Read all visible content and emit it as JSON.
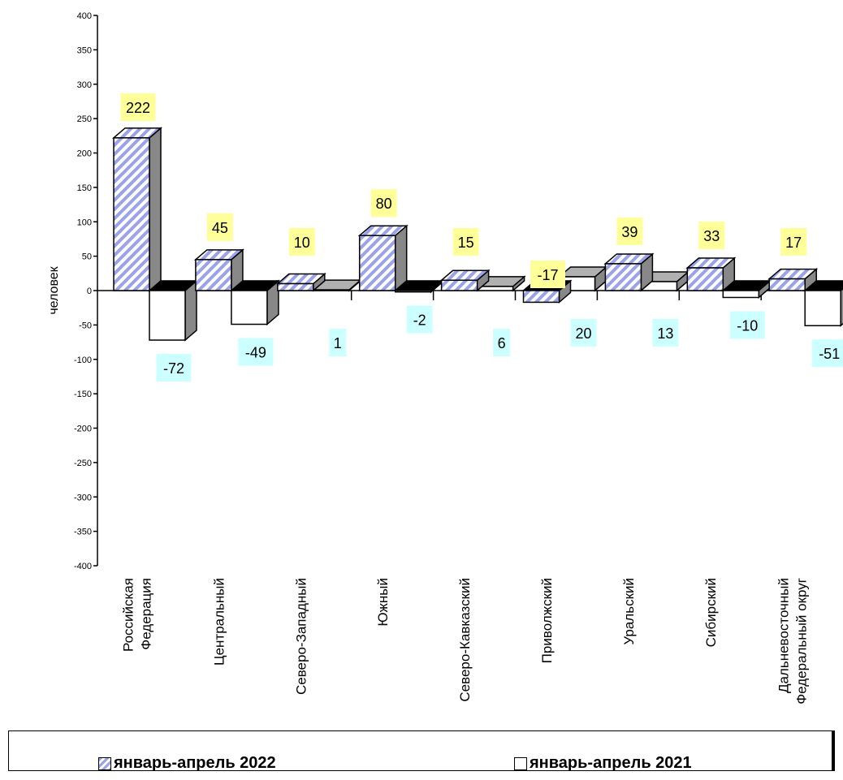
{
  "chart_data": {
    "type": "bar",
    "ylabel": "человек",
    "ylim": [
      -400,
      400
    ],
    "ytick_step": 50,
    "categories": [
      "Российская Федерация",
      "Центральный",
      "Северо-Западный",
      "Южный",
      "Северо-Кавказский",
      "Приволжский",
      "Уральский",
      "Сибирский",
      "Дальневосточный Федеральный округ"
    ],
    "category_lines": [
      [
        "Российская",
        "Федерация"
      ],
      [
        "Центральный"
      ],
      [
        "Северо-Западный"
      ],
      [
        "Южный"
      ],
      [
        "Северо-Кавказский"
      ],
      [
        "Приволжский"
      ],
      [
        "Уральский"
      ],
      [
        "Сибирский"
      ],
      [
        "Дальневосточный",
        "Федеральный округ"
      ]
    ],
    "series": [
      {
        "name": "январь-апрель 2022",
        "values": [
          222,
          45,
          10,
          80,
          15,
          -17,
          39,
          33,
          17
        ],
        "label_color": "#ffff99"
      },
      {
        "name": "январь-апрель 2021",
        "values": [
          -72,
          -49,
          1,
          -2,
          6,
          20,
          13,
          -10,
          -51
        ],
        "label_color": "#ccffff"
      }
    ],
    "legend_position": "bottom",
    "grid": false
  }
}
